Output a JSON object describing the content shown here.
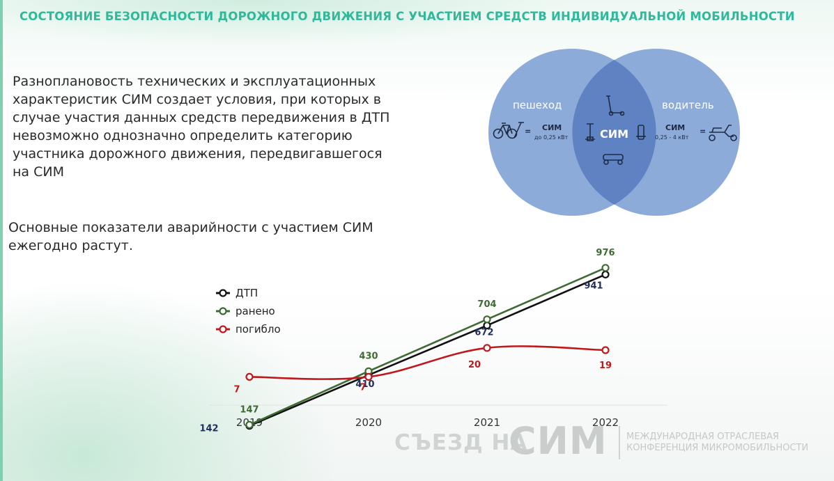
{
  "slide": {
    "title": "СОСТОЯНИЕ БЕЗОПАСНОСТИ ДОРОЖНОГО ДВИЖЕНИЯ С УЧАСТИЕМ СРЕДСТВ ИНДИВИДУАЛЬНОЙ МОБИЛЬНОСТИ",
    "intro_text": "Разноплановость технических и эксплуатационных характеристик СИМ создает условия, при которых в случае участия данных средств передвижения в ДТП невозможно однозначно определить категорию участника дорожного движения, передвигавшегося на СИМ",
    "subheading": "Основные показатели аварийности с участием СИМ ежегодно растут.",
    "accent_color": "#2fb89a"
  },
  "venn": {
    "left_label": "пешеход",
    "right_label": "водитель",
    "center_label": "СИМ",
    "left_eq": "=",
    "left_sim": "СИМ",
    "left_power": "до 0,25 кВт",
    "right_sim": "СИМ",
    "right_power": "0,25 - 4 кВт",
    "right_eq": "=",
    "circle_color": "#7d9fd3",
    "icons": [
      "bicycle-icon",
      "electric-scooter-icon",
      "hoverboard-icon",
      "segway-icon",
      "monowheel-icon",
      "moped-icon"
    ]
  },
  "chart_data": {
    "type": "line",
    "categories": [
      "2019",
      "2020",
      "2021",
      "2022"
    ],
    "series": [
      {
        "name": "ДТП",
        "values": [
          142,
          410,
          672,
          941
        ],
        "color": "#111111",
        "label_color": "#1f2f5a",
        "scale": "main"
      },
      {
        "name": "ранено",
        "values": [
          147,
          430,
          704,
          976
        ],
        "color": "#3f6b32",
        "label_color": "#3f6b32",
        "scale": "main"
      },
      {
        "name": "погибло",
        "values": [
          7,
          7,
          20,
          19
        ],
        "color": "#c0181c",
        "label_color": "#c0181c",
        "scale": "secondary",
        "smooth": true
      }
    ],
    "legend_position": "top-left",
    "grid": false
  },
  "footer": {
    "brand_left": "СЪЕЗД НА",
    "brand_big": "СИМ",
    "line1": "МЕЖДУНАРОДНАЯ ОТРАСЛЕВАЯ",
    "line2": "КОНФЕРЕНЦИЯ МИКРОМОБИЛЬНОСТИ"
  }
}
